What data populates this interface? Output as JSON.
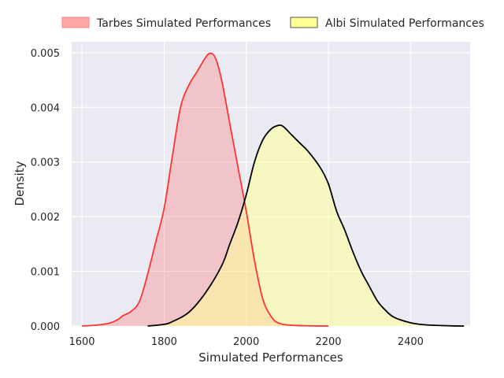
{
  "chart_data": {
    "type": "area",
    "title": "",
    "xlabel": "Simulated Performances",
    "ylabel": "Density",
    "xlim": [
      1575,
      2545
    ],
    "ylim": [
      0,
      0.0052
    ],
    "x_ticks": [
      1600,
      1800,
      2000,
      2200,
      2400
    ],
    "y_ticks": [
      0.0,
      0.001,
      0.002,
      0.003,
      0.004,
      0.005
    ],
    "y_tick_labels": [
      "0.000",
      "0.001",
      "0.002",
      "0.003",
      "0.004",
      "0.005"
    ],
    "grid": true,
    "legend": "top-center",
    "series": [
      {
        "name": "Tarbes Simulated Performances",
        "fill_color": "#ff7f7f",
        "fill_opacity": 0.35,
        "line_color": "#ff3333",
        "legend_fill": "#ff9896",
        "points": [
          [
            1600,
            0.0
          ],
          [
            1640,
            2e-05
          ],
          [
            1670,
            6e-05
          ],
          [
            1690,
            0.00013
          ],
          [
            1700,
            0.00019
          ],
          [
            1720,
            0.00027
          ],
          [
            1740,
            0.00045
          ],
          [
            1760,
            0.00095
          ],
          [
            1780,
            0.00155
          ],
          [
            1800,
            0.00215
          ],
          [
            1820,
            0.0031
          ],
          [
            1840,
            0.004
          ],
          [
            1860,
            0.0044
          ],
          [
            1880,
            0.00465
          ],
          [
            1900,
            0.0049
          ],
          [
            1912,
            0.00499
          ],
          [
            1925,
            0.0049
          ],
          [
            1940,
            0.0045
          ],
          [
            1960,
            0.0037
          ],
          [
            1980,
            0.0029
          ],
          [
            2000,
            0.0021
          ],
          [
            2020,
            0.0012
          ],
          [
            2040,
            0.0005
          ],
          [
            2060,
            0.00018
          ],
          [
            2080,
            5e-05
          ],
          [
            2120,
            1e-05
          ],
          [
            2200,
            0.0
          ]
        ]
      },
      {
        "name": "Albi Simulated Performances",
        "fill_color": "#ffff99",
        "fill_opacity": 0.55,
        "line_color": "#000000",
        "legend_fill": "#ffff80",
        "points": [
          [
            1760,
            0.0
          ],
          [
            1800,
            3e-05
          ],
          [
            1820,
            8e-05
          ],
          [
            1860,
            0.00025
          ],
          [
            1900,
            0.0006
          ],
          [
            1940,
            0.0011
          ],
          [
            1960,
            0.0015
          ],
          [
            1980,
            0.0019
          ],
          [
            2000,
            0.0024
          ],
          [
            2020,
            0.003
          ],
          [
            2040,
            0.0034
          ],
          [
            2060,
            0.0036
          ],
          [
            2078,
            0.00367
          ],
          [
            2090,
            0.00365
          ],
          [
            2110,
            0.0035
          ],
          [
            2130,
            0.00335
          ],
          [
            2150,
            0.0032
          ],
          [
            2180,
            0.0029
          ],
          [
            2200,
            0.0026
          ],
          [
            2220,
            0.0021
          ],
          [
            2240,
            0.00175
          ],
          [
            2260,
            0.00135
          ],
          [
            2280,
            0.001
          ],
          [
            2300,
            0.00072
          ],
          [
            2320,
            0.00045
          ],
          [
            2340,
            0.00028
          ],
          [
            2360,
            0.00016
          ],
          [
            2400,
            6e-05
          ],
          [
            2440,
            2e-05
          ],
          [
            2500,
            3e-06
          ],
          [
            2530,
            0.0
          ]
        ]
      }
    ]
  }
}
